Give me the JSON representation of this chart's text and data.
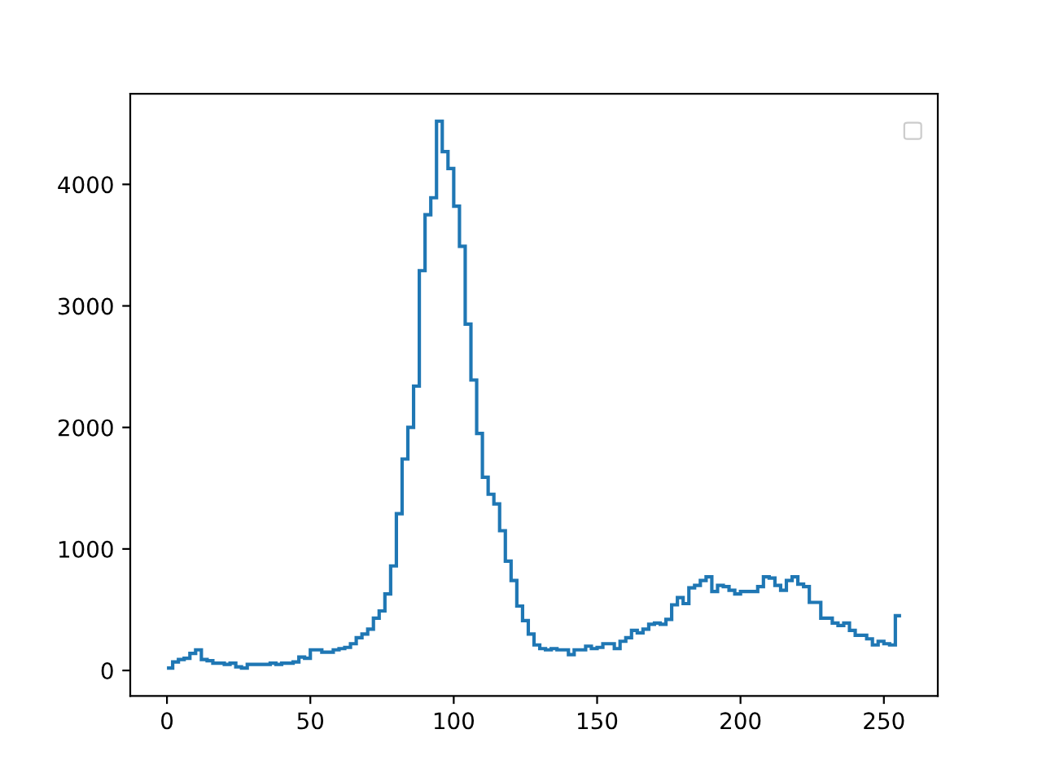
{
  "chart_data": {
    "type": "histogram",
    "bins": [
      0,
      2,
      4,
      6,
      8,
      10,
      12,
      14,
      16,
      18,
      20,
      22,
      24,
      26,
      28,
      30,
      32,
      34,
      36,
      38,
      40,
      42,
      44,
      46,
      48,
      50,
      52,
      54,
      56,
      58,
      60,
      62,
      64,
      66,
      68,
      70,
      72,
      74,
      76,
      78,
      80,
      82,
      84,
      86,
      88,
      90,
      92,
      94,
      96,
      98,
      100,
      102,
      104,
      106,
      108,
      110,
      112,
      114,
      116,
      118,
      120,
      122,
      124,
      126,
      128,
      130,
      132,
      134,
      136,
      138,
      140,
      142,
      144,
      146,
      148,
      150,
      152,
      154,
      156,
      158,
      160,
      162,
      164,
      166,
      168,
      170,
      172,
      174,
      176,
      178,
      180,
      182,
      184,
      186,
      188,
      190,
      192,
      194,
      196,
      198,
      200,
      202,
      204,
      206,
      208,
      210,
      212,
      214,
      216,
      218,
      220,
      222,
      224,
      226,
      228,
      230,
      232,
      234,
      236,
      238,
      240,
      242,
      244,
      246,
      248,
      250,
      252,
      254,
      256
    ],
    "values": [
      20,
      70,
      90,
      100,
      140,
      170,
      90,
      80,
      60,
      60,
      50,
      60,
      30,
      20,
      50,
      50,
      50,
      50,
      60,
      50,
      60,
      60,
      70,
      110,
      100,
      170,
      170,
      150,
      150,
      170,
      180,
      190,
      220,
      270,
      300,
      340,
      430,
      490,
      630,
      860,
      1290,
      1740,
      2000,
      2340,
      3290,
      3750,
      3890,
      4520,
      4270,
      4130,
      3820,
      3490,
      2850,
      2390,
      1950,
      1590,
      1450,
      1370,
      1150,
      900,
      740,
      530,
      410,
      300,
      210,
      180,
      170,
      180,
      170,
      170,
      130,
      170,
      170,
      200,
      180,
      190,
      220,
      220,
      180,
      240,
      270,
      330,
      310,
      340,
      380,
      390,
      380,
      420,
      540,
      600,
      550,
      680,
      700,
      740,
      770,
      650,
      700,
      690,
      660,
      630,
      650,
      650,
      650,
      690,
      770,
      760,
      700,
      660,
      740,
      770,
      710,
      690,
      560,
      560,
      430,
      430,
      390,
      370,
      390,
      330,
      290,
      290,
      260,
      210,
      240,
      220,
      210,
      450
    ],
    "color": "#1f77b4",
    "xlim": [
      -12.8,
      268.8
    ],
    "ylim": [
      -210,
      4745
    ],
    "xticks": [
      0,
      50,
      100,
      150,
      200,
      250
    ],
    "yticks": [
      0,
      1000,
      2000,
      3000,
      4000
    ],
    "grid": false
  }
}
